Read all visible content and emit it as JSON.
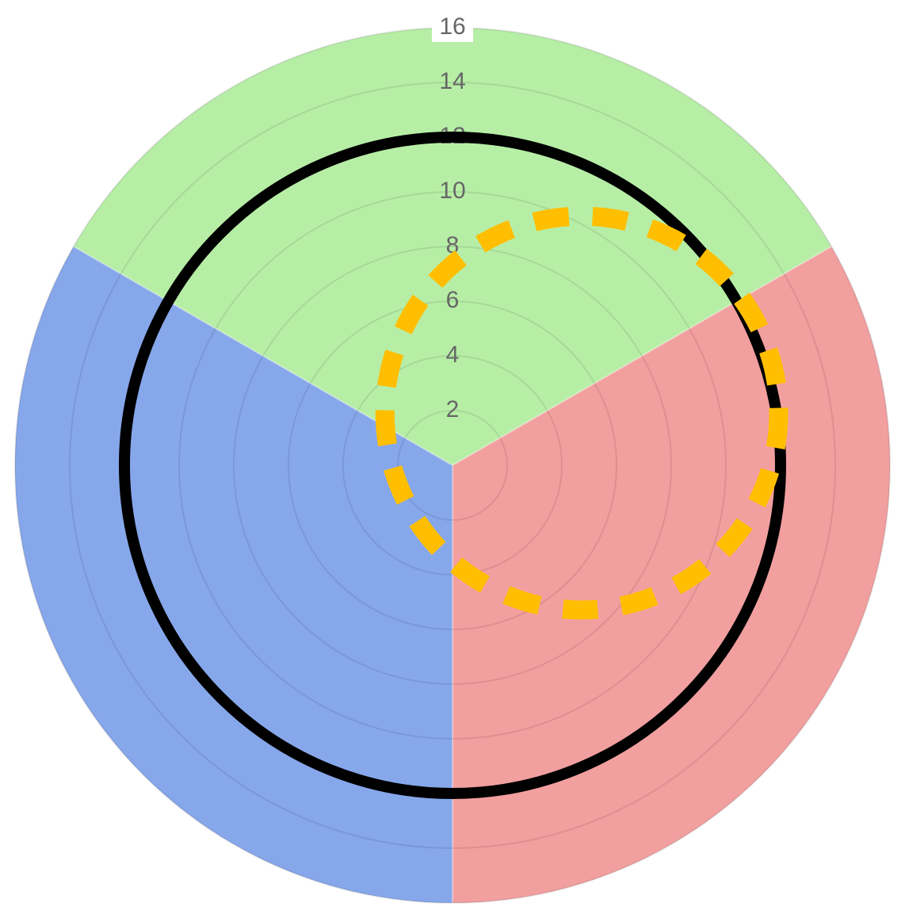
{
  "chart_data": {
    "type": "polar-area",
    "title": "",
    "categories": [
      "",
      "",
      ""
    ],
    "values": [
      16,
      16,
      16
    ],
    "colors": [
      "#b7eea6",
      "#f29f9f",
      "#87a7eb"
    ],
    "start_angle_deg": -60,
    "r_axis": {
      "min": 0,
      "max": 16,
      "ticks": [
        2,
        4,
        6,
        8,
        10,
        12,
        14,
        16
      ],
      "tick_labels": [
        "2",
        "4",
        "6",
        "8",
        "10",
        "12",
        "14",
        "16"
      ],
      "grid": true
    },
    "overlays": [
      {
        "shape": "circle",
        "style": "solid",
        "color": "#000000",
        "center": {
          "angle_deg": 0,
          "r": 0
        },
        "radius": 12
      },
      {
        "shape": "circle",
        "style": "dashed",
        "color": "#ffbf00",
        "center": {
          "angle_deg": 68,
          "r": 5.1
        },
        "radius": 7.2
      }
    ]
  }
}
